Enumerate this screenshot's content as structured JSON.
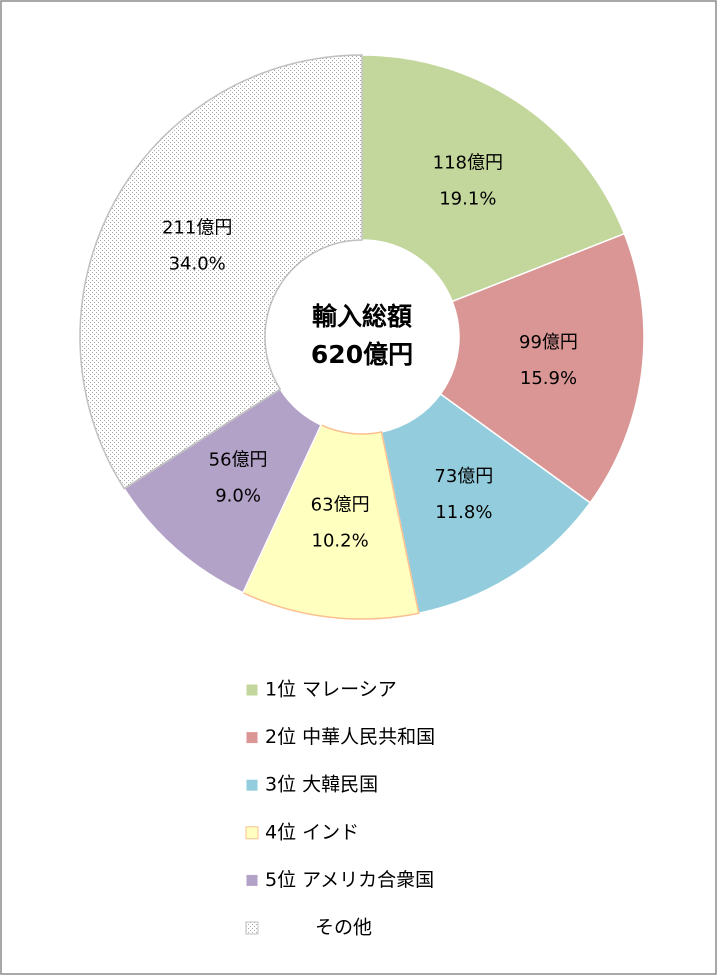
{
  "chart_data": {
    "type": "donut",
    "center_title": "輸入総額",
    "center_total": "620億円",
    "categories": [
      "1位 マレーシア",
      "2位 中華人民共和国",
      "3位 大韓民国",
      "4位 インド",
      "5位 アメリカ合衆国",
      "その他"
    ],
    "values": [
      118,
      99,
      73,
      63,
      56,
      211
    ],
    "value_labels": [
      "118億円",
      "99億円",
      "73億円",
      "63億円",
      "56億円",
      "211億円"
    ],
    "percent_labels": [
      "19.1%",
      "15.9%",
      "11.8%",
      "10.2%",
      "9.0%",
      "34.0%"
    ],
    "colors": [
      "#c3d69b",
      "#d99694",
      "#93cddd",
      "#ffffc0",
      "#b3a2c7",
      "#ffffff"
    ],
    "edge_colors": [
      "#ffffff",
      "#ffffff",
      "#ffffff",
      "#fac090",
      "#ffffff",
      "#bfbfbf"
    ],
    "fill_patterns": [
      null,
      null,
      null,
      null,
      null,
      "dotted"
    ]
  }
}
